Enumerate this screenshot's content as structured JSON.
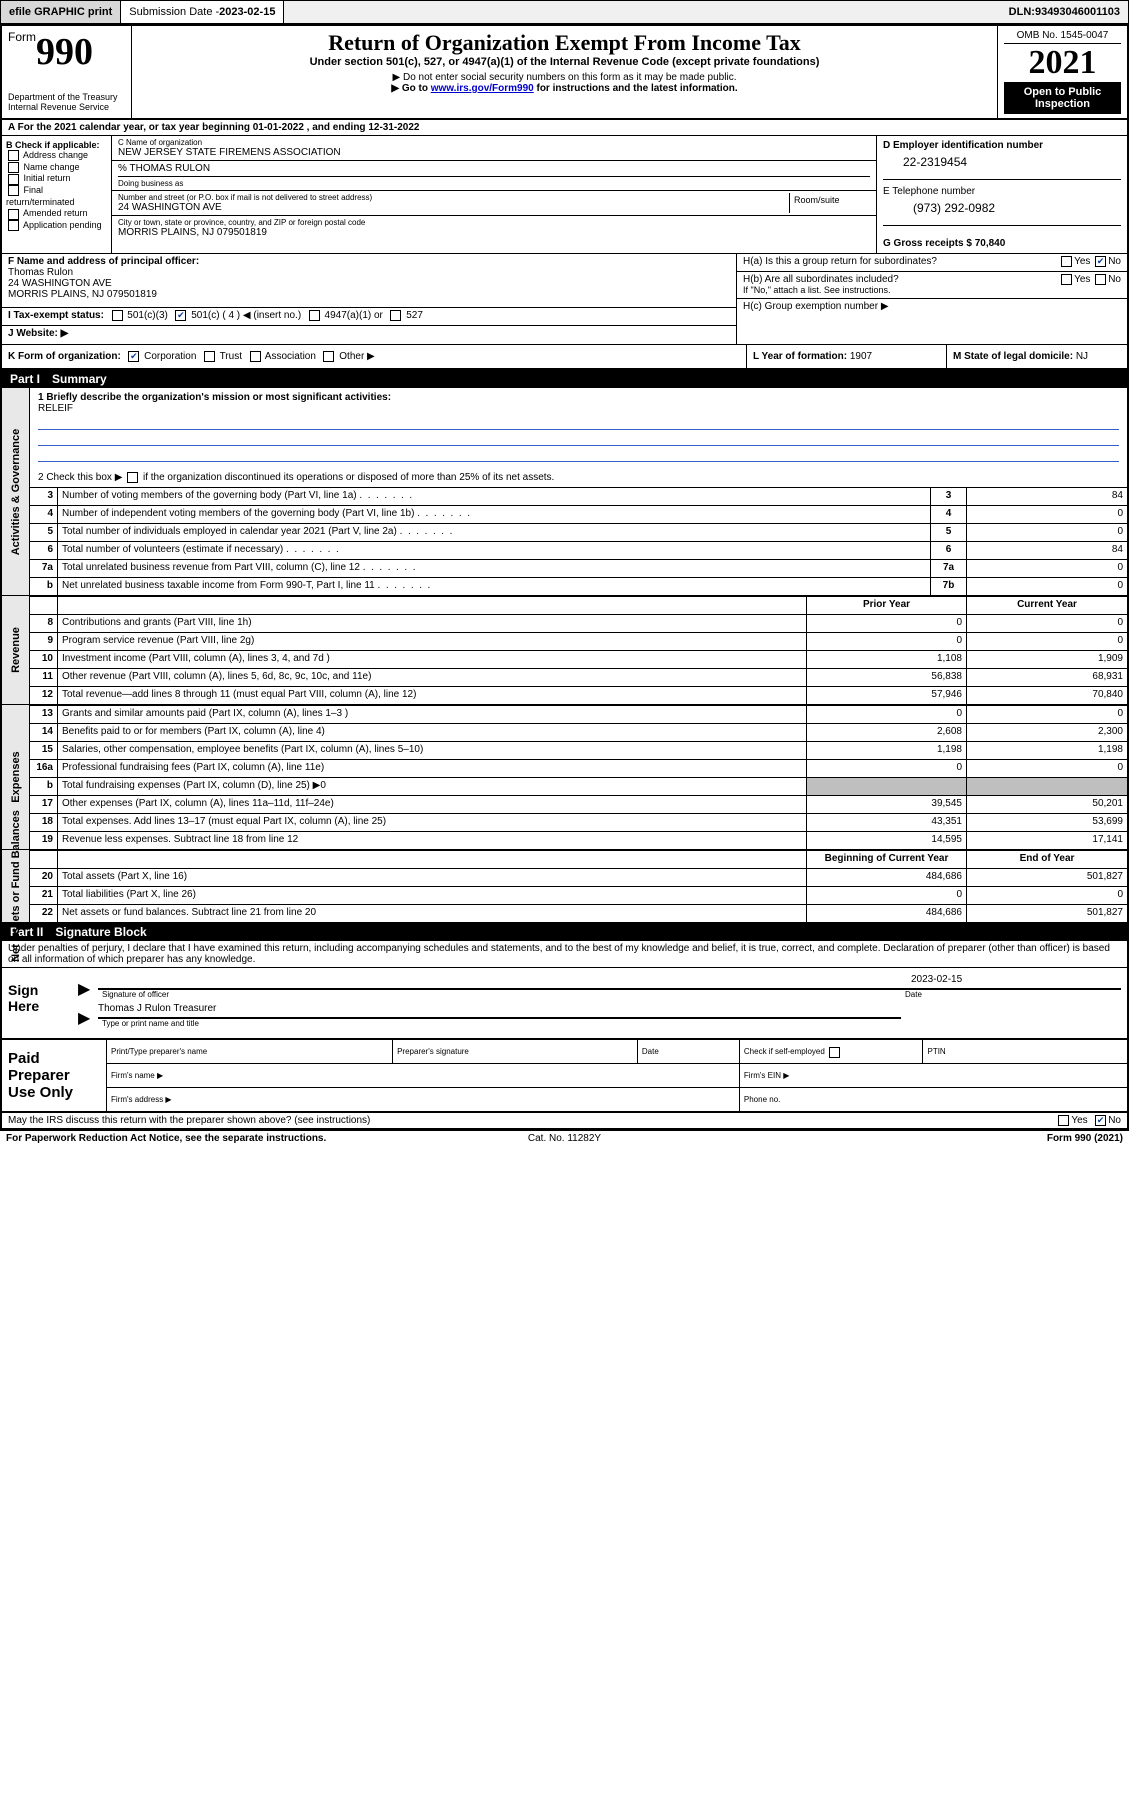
{
  "topbar": {
    "efile": "efile GRAPHIC print",
    "subdate_label": "Submission Date - ",
    "subdate": "2023-02-15",
    "dln_label": "DLN: ",
    "dln": "93493046001103"
  },
  "header": {
    "form_word": "Form",
    "form_num": "990",
    "dept": "Department of the Treasury\nInternal Revenue Service",
    "title": "Return of Organization Exempt From Income Tax",
    "subtitle": "Under section 501(c), 527, or 4947(a)(1) of the Internal Revenue Code (except private foundations)",
    "note1": "▶ Do not enter social security numbers on this form as it may be made public.",
    "note2_pre": "▶ Go to ",
    "note2_link": "www.irs.gov/Form990",
    "note2_post": " for instructions and the latest information.",
    "omb": "OMB No. 1545-0047",
    "year": "2021",
    "openpub": "Open to Public Inspection"
  },
  "period": {
    "text": "A For the 2021 calendar year, or tax year beginning 01-01-2022   , and ending 12-31-2022"
  },
  "blockB": {
    "label": "B Check if applicable:",
    "items": [
      "Address change",
      "Name change",
      "Initial return",
      "Final return/terminated",
      "Amended return",
      "Application pending"
    ]
  },
  "blockC": {
    "name_label": "C Name of organization",
    "name": "NEW JERSEY STATE FIREMENS ASSOCIATION",
    "care_label": "% Thomas Rulon",
    "dba_label": "Doing business as",
    "addr_label": "Number and street (or P.O. box if mail is not delivered to street address)",
    "room_label": "Room/suite",
    "addr": "24 WASHINGTON AVE",
    "city_label": "City or town, state or province, country, and ZIP or foreign postal code",
    "city": "MORRIS PLAINS, NJ  079501819"
  },
  "blockD": {
    "ein_label": "D Employer identification number",
    "ein": "22-2319454",
    "tel_label": "E Telephone number",
    "tel": "(973) 292-0982",
    "gross_label": "G Gross receipts $ ",
    "gross": "70,840"
  },
  "blockF": {
    "label": "F Name and address of principal officer:",
    "name": "Thomas Rulon",
    "addr1": "24 WASHINGTON AVE",
    "addr2": "MORRIS PLAINS, NJ  079501819"
  },
  "blockH": {
    "ha": "H(a)  Is this a group return for subordinates?",
    "hb": "H(b)  Are all subordinates included?",
    "hb_note": "If \"No,\" attach a list. See instructions.",
    "hc": "H(c)  Group exemption number ▶",
    "yes": "Yes",
    "no": "No"
  },
  "blockI": {
    "label": "I   Tax-exempt status:",
    "o1": "501(c)(3)",
    "o2": "501(c) ( 4 ) ◀ (insert no.)",
    "o3": "4947(a)(1) or",
    "o4": "527"
  },
  "blockJ": {
    "label": "J   Website: ▶"
  },
  "blockK": {
    "label": "K Form of organization:",
    "o1": "Corporation",
    "o2": "Trust",
    "o3": "Association",
    "o4": "Other ▶"
  },
  "blockL": {
    "label": "L Year of formation: ",
    "val": "1907"
  },
  "blockM": {
    "label": "M State of legal domicile: ",
    "val": "NJ"
  },
  "parts": {
    "p1": "Part I",
    "p1t": "Summary",
    "p2": "Part II",
    "p2t": "Signature Block"
  },
  "tabs": {
    "t1": "Activities & Governance",
    "t2": "Revenue",
    "t3": "Expenses",
    "t4": "Net Assets or Fund Balances"
  },
  "summary": {
    "q1": "1   Briefly describe the organization's mission or most significant activities:",
    "mission": "RELEIF",
    "q2_pre": "2   Check this box ▶ ",
    "q2_post": " if the organization discontinued its operations or disposed of more than 25% of its net assets.",
    "rows_1col": [
      {
        "n": "3",
        "t": "Number of voting members of the governing body (Part VI, line 1a)",
        "box": "3",
        "v": "84"
      },
      {
        "n": "4",
        "t": "Number of independent voting members of the governing body (Part VI, line 1b)",
        "box": "4",
        "v": "0"
      },
      {
        "n": "5",
        "t": "Total number of individuals employed in calendar year 2021 (Part V, line 2a)",
        "box": "5",
        "v": "0"
      },
      {
        "n": "6",
        "t": "Total number of volunteers (estimate if necessary)",
        "box": "6",
        "v": "84"
      },
      {
        "n": "7a",
        "t": "Total unrelated business revenue from Part VIII, column (C), line 12",
        "box": "7a",
        "v": "0"
      },
      {
        "n": "b",
        "t": "Net unrelated business taxable income from Form 990-T, Part I, line 11",
        "box": "7b",
        "v": "0"
      }
    ],
    "hdr_prior": "Prior Year",
    "hdr_current": "Current Year",
    "revenue": [
      {
        "n": "8",
        "t": "Contributions and grants (Part VIII, line 1h)",
        "c1": "0",
        "c2": "0"
      },
      {
        "n": "9",
        "t": "Program service revenue (Part VIII, line 2g)",
        "c1": "0",
        "c2": "0"
      },
      {
        "n": "10",
        "t": "Investment income (Part VIII, column (A), lines 3, 4, and 7d )",
        "c1": "1,108",
        "c2": "1,909"
      },
      {
        "n": "11",
        "t": "Other revenue (Part VIII, column (A), lines 5, 6d, 8c, 9c, 10c, and 11e)",
        "c1": "56,838",
        "c2": "68,931"
      },
      {
        "n": "12",
        "t": "Total revenue—add lines 8 through 11 (must equal Part VIII, column (A), line 12)",
        "c1": "57,946",
        "c2": "70,840"
      }
    ],
    "expenses": [
      {
        "n": "13",
        "t": "Grants and similar amounts paid (Part IX, column (A), lines 1–3 )",
        "c1": "0",
        "c2": "0"
      },
      {
        "n": "14",
        "t": "Benefits paid to or for members (Part IX, column (A), line 4)",
        "c1": "2,608",
        "c2": "2,300"
      },
      {
        "n": "15",
        "t": "Salaries, other compensation, employee benefits (Part IX, column (A), lines 5–10)",
        "c1": "1,198",
        "c2": "1,198"
      },
      {
        "n": "16a",
        "t": "Professional fundraising fees (Part IX, column (A), line 11e)",
        "c1": "0",
        "c2": "0"
      },
      {
        "n": "b",
        "t": "Total fundraising expenses (Part IX, column (D), line 25) ▶0",
        "c1": "",
        "c2": "",
        "shade": true
      },
      {
        "n": "17",
        "t": "Other expenses (Part IX, column (A), lines 11a–11d, 11f–24e)",
        "c1": "39,545",
        "c2": "50,201"
      },
      {
        "n": "18",
        "t": "Total expenses. Add lines 13–17 (must equal Part IX, column (A), line 25)",
        "c1": "43,351",
        "c2": "53,699"
      },
      {
        "n": "19",
        "t": "Revenue less expenses. Subtract line 18 from line 12",
        "c1": "14,595",
        "c2": "17,141"
      }
    ],
    "hdr_bcy": "Beginning of Current Year",
    "hdr_eoy": "End of Year",
    "netassets": [
      {
        "n": "20",
        "t": "Total assets (Part X, line 16)",
        "c1": "484,686",
        "c2": "501,827"
      },
      {
        "n": "21",
        "t": "Total liabilities (Part X, line 26)",
        "c1": "0",
        "c2": "0"
      },
      {
        "n": "22",
        "t": "Net assets or fund balances. Subtract line 21 from line 20",
        "c1": "484,686",
        "c2": "501,827"
      }
    ]
  },
  "sig": {
    "decl": "Under penalties of perjury, I declare that I have examined this return, including accompanying schedules and statements, and to the best of my knowledge and belief, it is true, correct, and complete. Declaration of preparer (other than officer) is based on all information of which preparer has any knowledge.",
    "signhere": "Sign Here",
    "sig_of_officer": "Signature of officer",
    "date_label": "Date",
    "date": "2023-02-15",
    "name_title": "Thomas J Rulon Treasurer",
    "name_title_cap": "Type or print name and title",
    "paid": "Paid Preparer Use Only",
    "h_name": "Print/Type preparer's name",
    "h_sig": "Preparer's signature",
    "h_date": "Date",
    "h_check": "Check          if self-employed",
    "h_ptin": "PTIN",
    "firm_name": "Firm's name   ▶",
    "firm_ein": "Firm's EIN ▶",
    "firm_addr": "Firm's address ▶",
    "phone": "Phone no.",
    "may_irs": "May the IRS discuss this return with the preparer shown above? (see instructions)"
  },
  "footer": {
    "left": "For Paperwork Reduction Act Notice, see the separate instructions.",
    "center": "Cat. No. 11282Y",
    "right": "Form 990 (2021)"
  }
}
